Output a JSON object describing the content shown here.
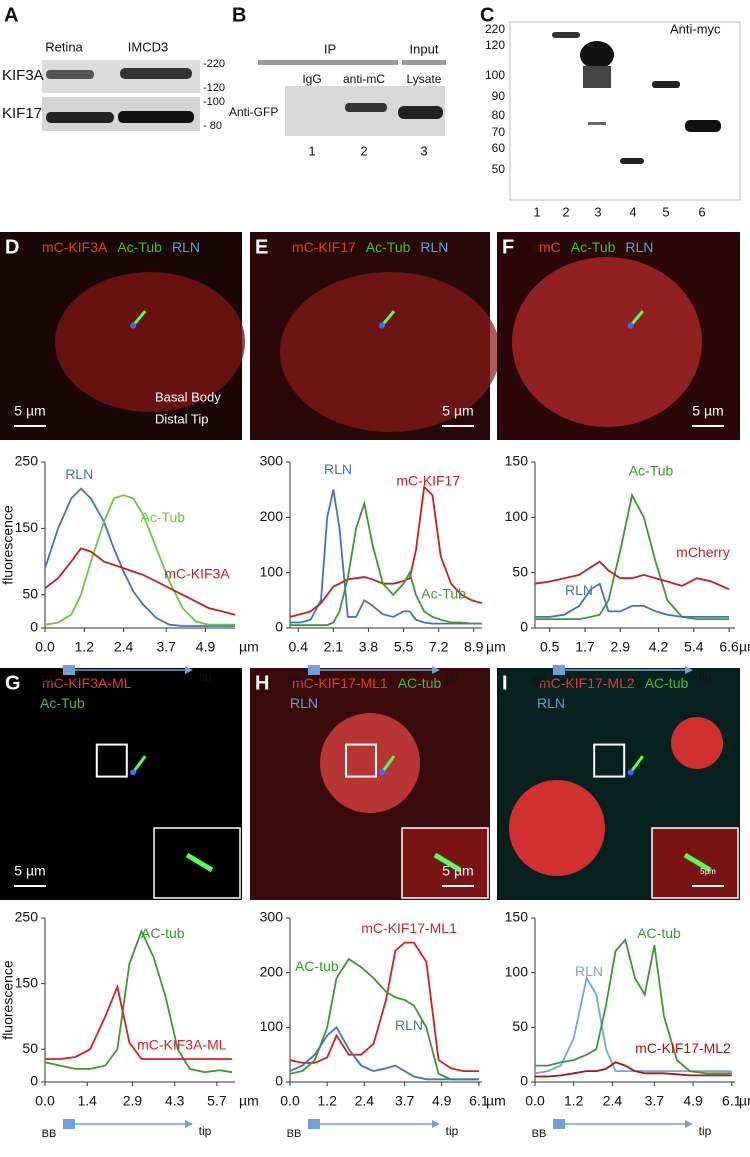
{
  "blots": {
    "A": {
      "letter": "A",
      "columns": [
        "Retina",
        "IMCD3"
      ],
      "rows": [
        "KIF3A",
        "KIF17"
      ],
      "markers": [
        "-220",
        "-120",
        "-100",
        "- 80"
      ]
    },
    "B": {
      "letter": "B",
      "groups": [
        "IP",
        "Input"
      ],
      "lanes": [
        "IgG",
        "anti-mC",
        "Lysate"
      ],
      "row": "Anti-GFP",
      "numbers": [
        "1",
        "2",
        "3"
      ]
    },
    "C": {
      "letter": "C",
      "markers": [
        "220",
        "120",
        "100",
        "90",
        "80",
        "70",
        "60",
        "50"
      ],
      "antibody": "Anti-myc",
      "lanes": [
        "1",
        "2",
        "3",
        "4",
        "5",
        "6"
      ]
    }
  },
  "micrographs": [
    {
      "letter": "D",
      "label_lines": [
        [
          {
            "text": "mC-KIF3A",
            "color": "#e33b2e"
          },
          {
            "text": "Ac-Tub",
            "color": "#3fbf3f"
          },
          {
            "text": "RLN",
            "color": "#5aa0e0"
          }
        ]
      ],
      "scale": "5 µm",
      "notes": [
        "Basal Body",
        "Distal Tip"
      ]
    },
    {
      "letter": "E",
      "label_lines": [
        [
          {
            "text": "mC-KIF17",
            "color": "#e33b2e"
          },
          {
            "text": "Ac-Tub",
            "color": "#3fbf3f"
          },
          {
            "text": "RLN",
            "color": "#5aa0e0"
          }
        ]
      ],
      "scale": "5 µm"
    },
    {
      "letter": "F",
      "label_lines": [
        [
          {
            "text": "mC",
            "color": "#e33b2e"
          },
          {
            "text": "Ac-Tub",
            "color": "#3fbf3f"
          },
          {
            "text": "RLN",
            "color": "#5aa0e0"
          }
        ]
      ],
      "scale": "5 µm"
    },
    {
      "letter": "G",
      "label_lines": [
        [
          {
            "text": "mC-KIF3A-ML",
            "color": "#e33b2e"
          }
        ],
        [
          {
            "text": "Ac-Tub",
            "color": "#3fbf3f"
          }
        ]
      ],
      "scale": "5 µm"
    },
    {
      "letter": "H",
      "label_lines": [
        [
          {
            "text": "mC-KIF17-ML1",
            "color": "#e33b2e"
          },
          {
            "text": "AC-tub",
            "color": "#3fbf3f"
          }
        ],
        [
          {
            "text": "RLN",
            "color": "#5aa0e0"
          }
        ]
      ],
      "scale": "5 µm"
    },
    {
      "letter": "I",
      "label_lines": [
        [
          {
            "text": "mC-KIF17-ML2",
            "color": "#e33b2e"
          },
          {
            "text": "AC-tub",
            "color": "#3fbf3f"
          }
        ],
        [
          {
            "text": "RLN",
            "color": "#5aa0e0"
          }
        ]
      ],
      "scale": "5μm"
    }
  ],
  "chart_data": [
    {
      "type": "line",
      "y_label": "fluorescence",
      "x_unit": "µm",
      "x_start": "BB",
      "x_end": "tip",
      "x": [
        0,
        0.4,
        0.8,
        1.1,
        1.4,
        1.8,
        2.1,
        2.4,
        2.7,
        3.0,
        3.4,
        3.8,
        4.2,
        4.6,
        5.0,
        5.4,
        5.8
      ],
      "xlim": [
        0,
        5.8
      ],
      "xticks": [
        {
          "value": 0,
          "label": "0.0"
        },
        1.2,
        2.4,
        3.7,
        4.9
      ],
      "ylim": [
        0,
        250
      ],
      "yticks": [
        0,
        50,
        150,
        250
      ],
      "series": [
        {
          "name": "RLN",
          "color": "#3f73c4",
          "values": [
            90,
            150,
            195,
            210,
            195,
            160,
            120,
            85,
            55,
            35,
            15,
            5,
            3,
            3,
            3,
            3,
            3
          ]
        },
        {
          "name": "Ac-Tub",
          "color": "#6cc83a",
          "values": [
            5,
            8,
            20,
            50,
            100,
            160,
            195,
            200,
            195,
            170,
            120,
            70,
            30,
            10,
            5,
            5,
            5
          ]
        },
        {
          "name": "mC-KIF3A",
          "color": "#c81e1e",
          "values": [
            60,
            75,
            100,
            120,
            115,
            100,
            95,
            90,
            85,
            80,
            70,
            60,
            50,
            40,
            30,
            25,
            20
          ]
        }
      ]
    },
    {
      "type": "line",
      "x_unit": "µm",
      "x_start": "BB",
      "x_end": "tip",
      "x": [
        0,
        0.5,
        1.0,
        1.5,
        1.8,
        2.1,
        2.4,
        2.8,
        3.2,
        3.6,
        4.0,
        4.5,
        5.0,
        5.5,
        5.8,
        6.1,
        6.5,
        6.9,
        7.3,
        7.8,
        8.3,
        8.8,
        9.3
      ],
      "xlim": [
        0,
        9.3
      ],
      "xticks": [
        0.4,
        2.1,
        3.8,
        5.5,
        7.2,
        8.9
      ],
      "ylim": [
        0,
        300
      ],
      "yticks": [
        0,
        100,
        200,
        300
      ],
      "series": [
        {
          "name": "RLN",
          "color": "#3f73c4",
          "values": [
            10,
            10,
            15,
            50,
            200,
            250,
            180,
            20,
            20,
            50,
            40,
            25,
            20,
            30,
            30,
            15,
            10,
            8,
            8,
            8,
            8,
            8,
            8
          ]
        },
        {
          "name": "mC-KIF17",
          "color": "#c81e1e",
          "values": [
            20,
            25,
            30,
            45,
            60,
            75,
            80,
            88,
            90,
            92,
            88,
            80,
            80,
            85,
            90,
            140,
            255,
            240,
            130,
            80,
            60,
            50,
            45
          ]
        },
        {
          "name": "Ac-Tub",
          "color": "#3a9a2e",
          "values": [
            5,
            5,
            5,
            5,
            5,
            10,
            30,
            90,
            180,
            225,
            150,
            80,
            60,
            80,
            100,
            60,
            30,
            20,
            15,
            10,
            10,
            8,
            8
          ]
        }
      ]
    },
    {
      "type": "line",
      "x_unit": "µm",
      "x_start": "BB",
      "x_end": "tip",
      "x": [
        0,
        0.5,
        1.0,
        1.5,
        1.9,
        2.2,
        2.5,
        2.9,
        3.3,
        3.7,
        4.1,
        4.5,
        5.0,
        5.5,
        6.0,
        6.6
      ],
      "xlim": [
        0,
        6.8
      ],
      "xticks": [
        0.5,
        1.7,
        2.9,
        4.2,
        5.4,
        6.6
      ],
      "ylim": [
        0,
        150
      ],
      "yticks": [
        0,
        50,
        100,
        150
      ],
      "series": [
        {
          "name": "Ac-Tub",
          "color": "#3a9a2e",
          "values": [
            8,
            8,
            8,
            8,
            10,
            12,
            25,
            70,
            120,
            100,
            60,
            25,
            10,
            8,
            8,
            8
          ]
        },
        {
          "name": "mCherry",
          "color": "#c81e1e",
          "values": [
            40,
            42,
            45,
            48,
            55,
            60,
            52,
            45,
            45,
            48,
            45,
            42,
            38,
            45,
            42,
            35
          ]
        },
        {
          "name": "RLN",
          "color": "#3f73c4",
          "values": [
            10,
            10,
            12,
            20,
            35,
            40,
            15,
            15,
            20,
            20,
            15,
            12,
            10,
            10,
            10,
            10
          ]
        }
      ]
    },
    {
      "type": "line",
      "y_label": "fluorescence",
      "x_unit": "µm",
      "x_start": "BB",
      "x_end": "tip",
      "x": [
        0,
        0.5,
        1.0,
        1.5,
        2.0,
        2.4,
        2.8,
        3.2,
        3.6,
        4.0,
        4.4,
        4.8,
        5.3,
        5.8,
        6.2
      ],
      "xlim": [
        0,
        6.3
      ],
      "xticks": [
        {
          "value": 0,
          "label": "0.0"
        },
        1.4,
        2.9,
        4.3,
        5.7
      ],
      "ylim": [
        0,
        250
      ],
      "yticks": [
        0,
        50,
        150,
        250
      ],
      "series": [
        {
          "name": "AC-tub",
          "color": "#3a9a2e",
          "values": [
            30,
            25,
            20,
            20,
            25,
            50,
            180,
            230,
            190,
            130,
            50,
            20,
            15,
            18,
            15
          ]
        },
        {
          "name": "mC-KIF3A-ML",
          "color": "#d42020",
          "values": [
            35,
            35,
            38,
            50,
            100,
            145,
            60,
            35,
            35,
            35,
            35,
            35,
            35,
            35,
            35
          ]
        }
      ]
    },
    {
      "type": "line",
      "x_unit": "µm",
      "x_start": "BB",
      "x_end": "tip",
      "x": [
        0,
        0.4,
        0.8,
        1.2,
        1.5,
        1.9,
        2.3,
        2.7,
        3.1,
        3.4,
        3.7,
        4.0,
        4.4,
        4.8,
        5.2,
        5.6,
        6.1
      ],
      "xlim": [
        0,
        6.2
      ],
      "xticks": [
        {
          "value": 0,
          "label": "0.0"
        },
        1.2,
        2.4,
        3.7,
        4.9,
        6.1
      ],
      "ylim": [
        0,
        300
      ],
      "yticks": [
        0,
        100,
        200,
        300
      ],
      "series": [
        {
          "name": "mC-KIF17-ML1",
          "color": "#d42020",
          "values": [
            40,
            35,
            35,
            45,
            85,
            50,
            50,
            70,
            150,
            240,
            255,
            255,
            220,
            40,
            25,
            20,
            20
          ]
        },
        {
          "name": "AC-tub",
          "color": "#3a9a2e",
          "values": [
            15,
            20,
            40,
            100,
            190,
            225,
            210,
            190,
            165,
            155,
            150,
            140,
            100,
            15,
            5,
            5,
            5
          ]
        },
        {
          "name": "RLN",
          "color": "#3f73c4",
          "values": [
            20,
            30,
            50,
            85,
            100,
            60,
            30,
            20,
            25,
            30,
            20,
            10,
            5,
            5,
            5,
            5,
            5
          ]
        }
      ]
    },
    {
      "type": "line",
      "x_unit": "µm",
      "x_start": "BB",
      "x_end": "tip",
      "x": [
        0,
        0.4,
        0.8,
        1.2,
        1.6,
        1.9,
        2.2,
        2.5,
        2.8,
        3.1,
        3.4,
        3.7,
        4.0,
        4.4,
        4.8,
        5.3,
        5.8,
        6.1
      ],
      "xlim": [
        0,
        6.2
      ],
      "xticks": [
        {
          "value": 0,
          "label": "0.0"
        },
        1.2,
        2.4,
        3.7,
        4.9,
        6.1
      ],
      "ylim": [
        0,
        150
      ],
      "yticks": [
        0,
        50,
        100,
        150
      ],
      "series": [
        {
          "name": "RLN",
          "color": "#6fa8dc",
          "values": [
            8,
            10,
            15,
            40,
            95,
            80,
            30,
            10,
            10,
            10,
            10,
            10,
            10,
            10,
            10,
            10,
            10,
            10
          ]
        },
        {
          "name": "AC-tub",
          "color": "#3a9a2e",
          "values": [
            15,
            15,
            18,
            20,
            25,
            30,
            70,
            120,
            130,
            95,
            80,
            125,
            60,
            20,
            10,
            8,
            8,
            8
          ]
        },
        {
          "name": "mC-KIF17-ML2",
          "color": "#b01010",
          "values": [
            5,
            5,
            6,
            8,
            10,
            10,
            12,
            18,
            15,
            10,
            8,
            8,
            8,
            7,
            6,
            6,
            6,
            6
          ]
        }
      ]
    }
  ]
}
